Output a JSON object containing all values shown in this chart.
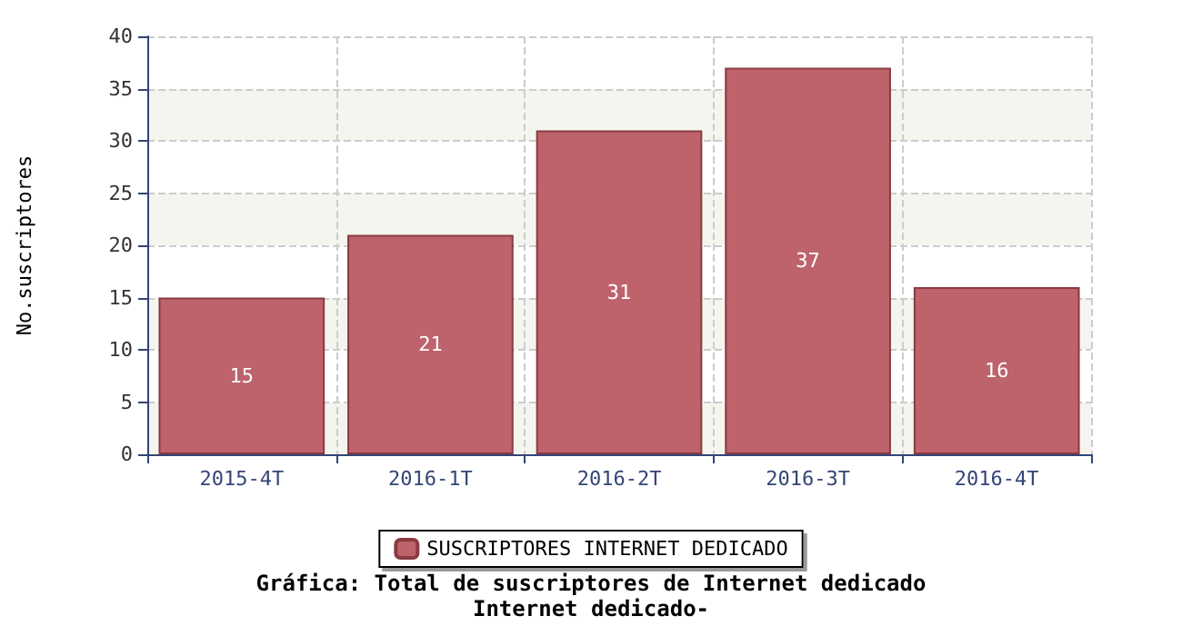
{
  "chart_data": {
    "type": "bar",
    "title": "Gráfica: Total de suscriptores de Internet dedicado",
    "subtitle": "Internet dedicado-",
    "ylabel": "No.suscriptores",
    "categories": [
      "2015-4T",
      "2016-1T",
      "2016-2T",
      "2016-3T",
      "2016-4T"
    ],
    "series": [
      {
        "name": "SUSCRIPTORES INTERNET DEDICADO",
        "color": "#be636b",
        "values": [
          15,
          21,
          31,
          37,
          16
        ]
      }
    ],
    "ylim": [
      0,
      40
    ],
    "yticks": [
      0,
      5,
      10,
      15,
      20,
      25,
      30,
      35,
      40
    ],
    "grid": true,
    "legend": "bottom",
    "data_labels": true
  }
}
